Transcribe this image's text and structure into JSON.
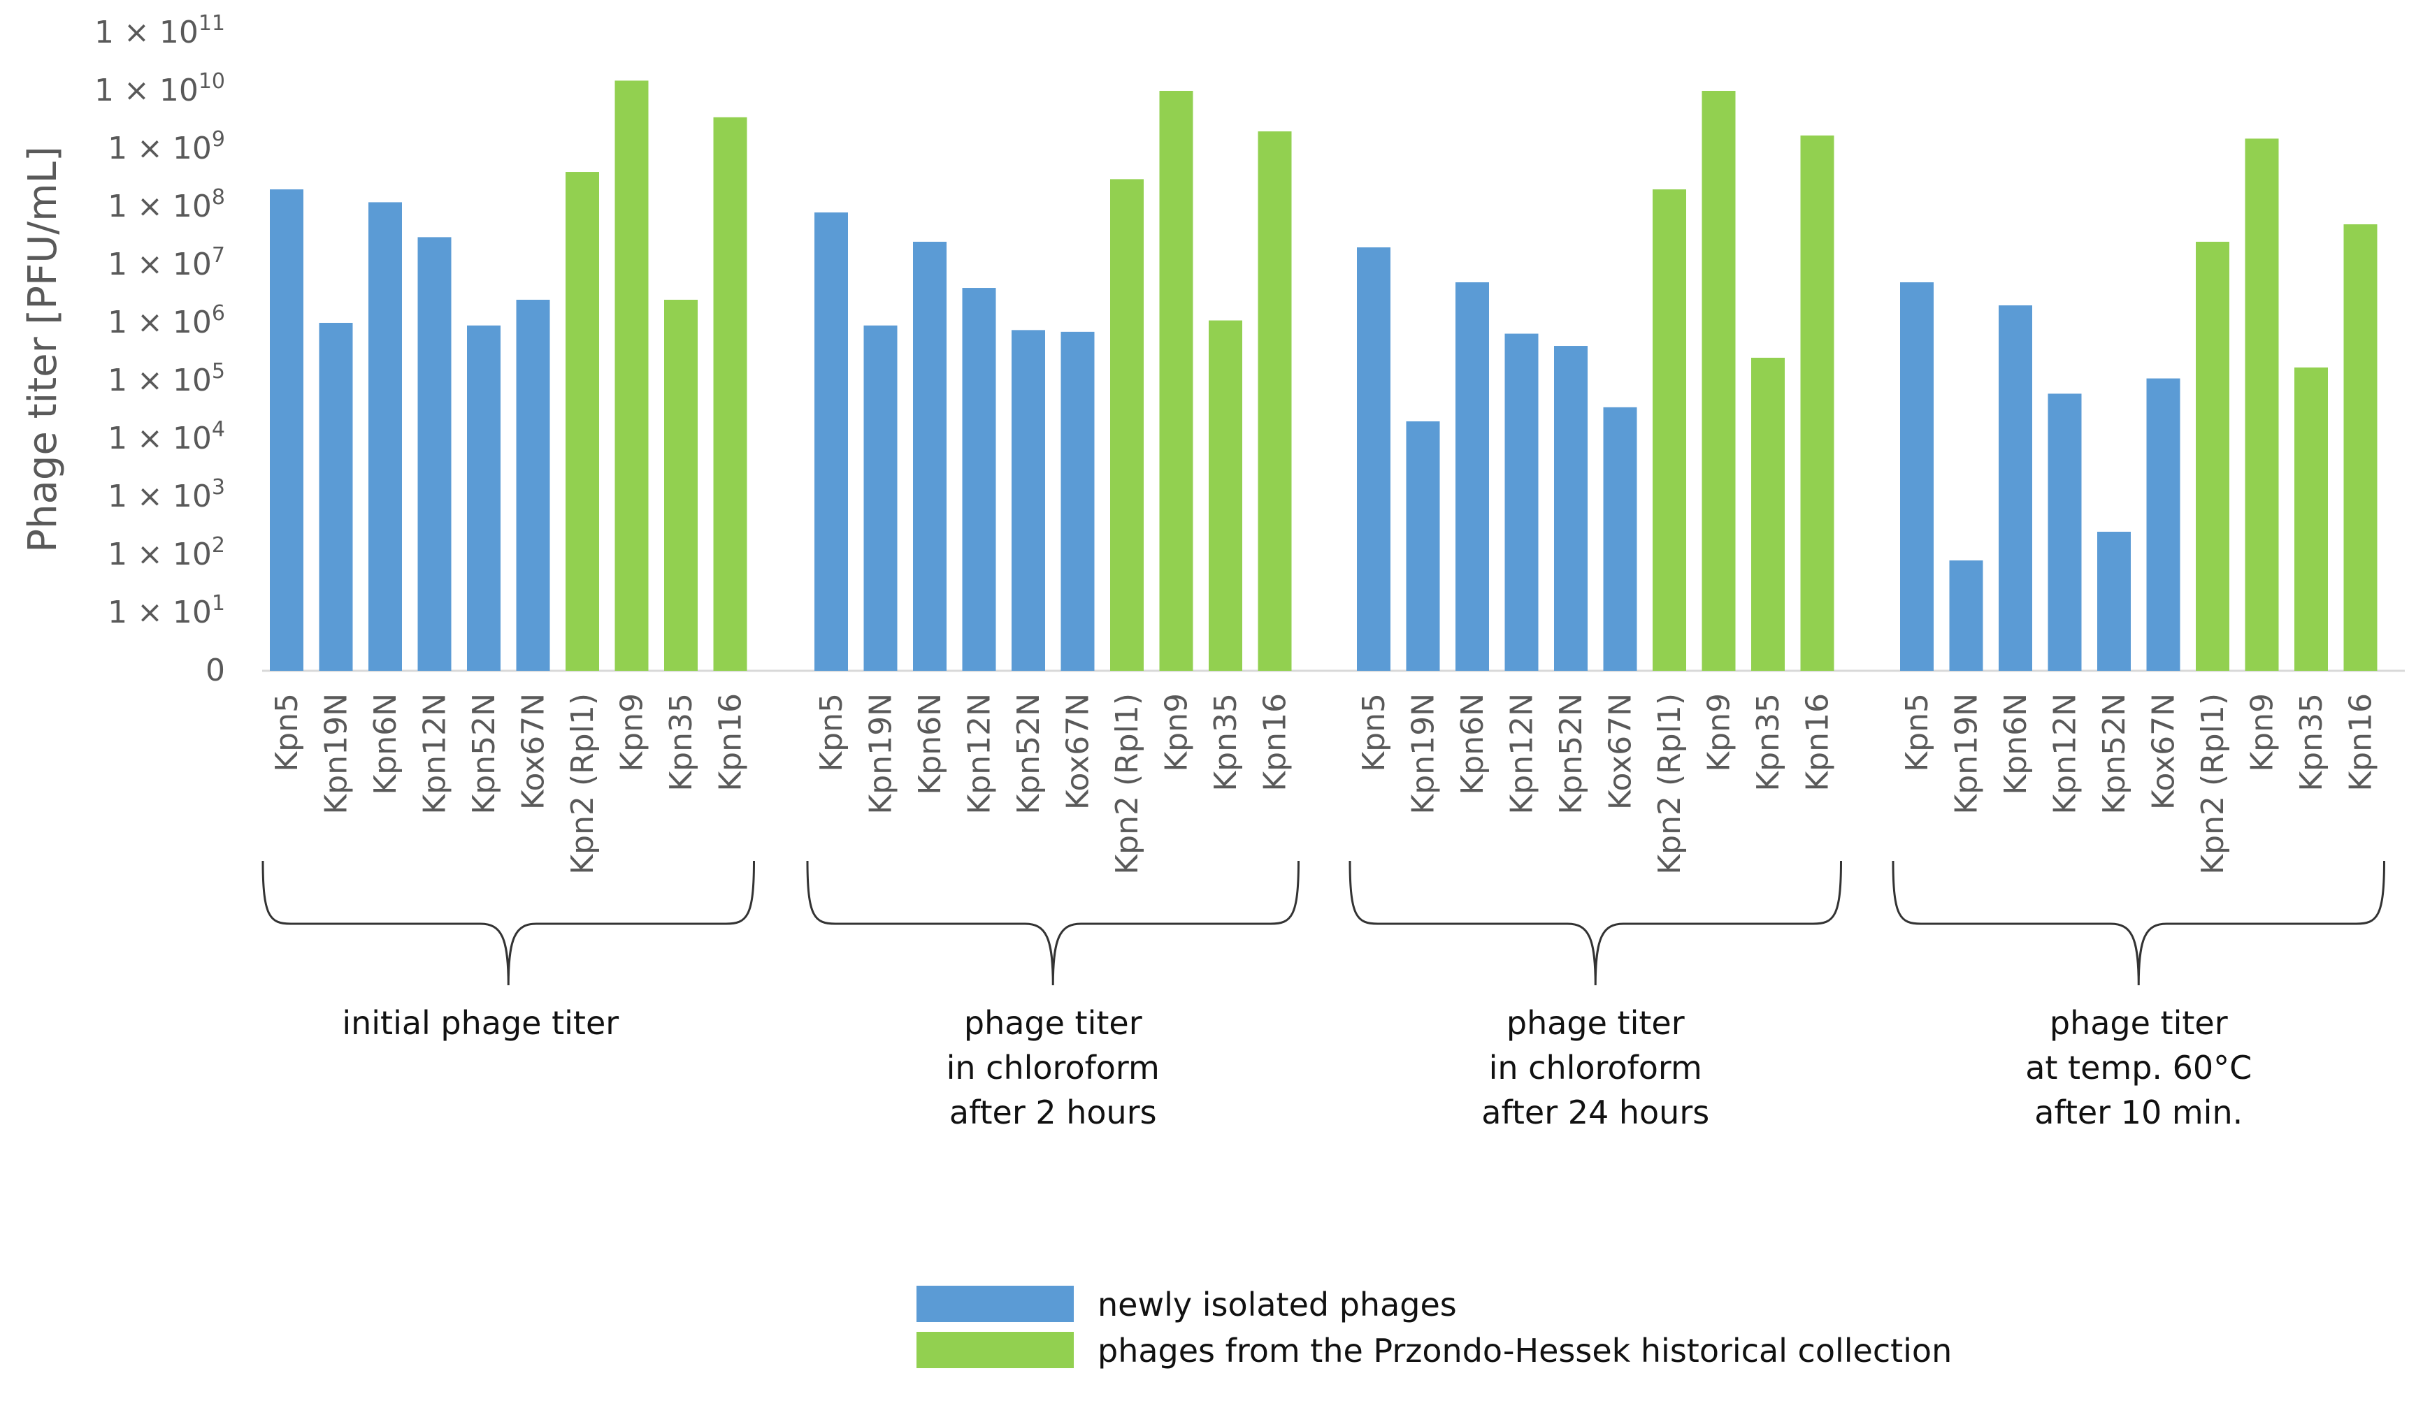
{
  "chart_data": {
    "type": "bar",
    "scale": "log",
    "ylabel": "Phage titer [PFU/mL]",
    "y_ticks": [
      {
        "base": "1 × 10",
        "exp": "11",
        "value": 100000000000.0
      },
      {
        "base": "1 × 10",
        "exp": "10",
        "value": 10000000000.0
      },
      {
        "base": "1 × 10",
        "exp": "9",
        "value": 1000000000.0
      },
      {
        "base": "1 × 10",
        "exp": "8",
        "value": 100000000.0
      },
      {
        "base": "1 × 10",
        "exp": "7",
        "value": 10000000.0
      },
      {
        "base": "1 × 10",
        "exp": "6",
        "value": 1000000.0
      },
      {
        "base": "1 × 10",
        "exp": "5",
        "value": 100000.0
      },
      {
        "base": "1 × 10",
        "exp": "4",
        "value": 10000.0
      },
      {
        "base": "1 × 10",
        "exp": "3",
        "value": 1000.0
      },
      {
        "base": "1 × 10",
        "exp": "2",
        "value": 100.0
      },
      {
        "base": "1 × 10",
        "exp": "1",
        "value": 10.0
      },
      {
        "base": "0",
        "exp": "",
        "value": 1
      }
    ],
    "ylim": [
      1,
      100000000000
    ],
    "categories": [
      "Kpn5",
      "Kpn19N",
      "Kpn6N",
      "Kpn12N",
      "Kpn52N",
      "Kox67N",
      "Kpn2 (Rpl1)",
      "Kpn9",
      "Kpn35",
      "Kpn16"
    ],
    "category_series": [
      "newly",
      "newly",
      "newly",
      "newly",
      "newly",
      "newly",
      "historical",
      "historical",
      "historical",
      "historical"
    ],
    "groups": [
      {
        "label": [
          "initial phage titer"
        ],
        "values": [
          200000000,
          1000000,
          120000000,
          30000000,
          900000,
          2500000,
          400000000,
          15000000000,
          2500000,
          3500000000
        ]
      },
      {
        "label": [
          "phage titer",
          "in chloroform",
          "after 2 hours"
        ],
        "values": [
          80000000,
          900000,
          25000000,
          4000000,
          750000,
          700000,
          300000000,
          10000000000,
          1100000,
          2000000000
        ]
      },
      {
        "label": [
          "phage titer",
          "in chloroform",
          "after 24 hours"
        ],
        "values": [
          20000000,
          20000,
          5000000,
          650000,
          400000,
          35000,
          200000000,
          10000000000,
          250000,
          1700000000
        ]
      },
      {
        "label": [
          "phage titer",
          "at temp. 60°C",
          "after 10 min."
        ],
        "values": [
          5000000,
          80,
          2000000,
          60000,
          250,
          110000,
          25000000,
          1500000000,
          170000,
          50000000
        ]
      }
    ],
    "series": [
      {
        "key": "newly",
        "name": "newly isolated phages",
        "color": "#5b9bd5"
      },
      {
        "key": "historical",
        "name": "phages from the Przondo-Hessek historical collection",
        "color": "#92d050"
      }
    ],
    "legend": "bottom-center"
  }
}
